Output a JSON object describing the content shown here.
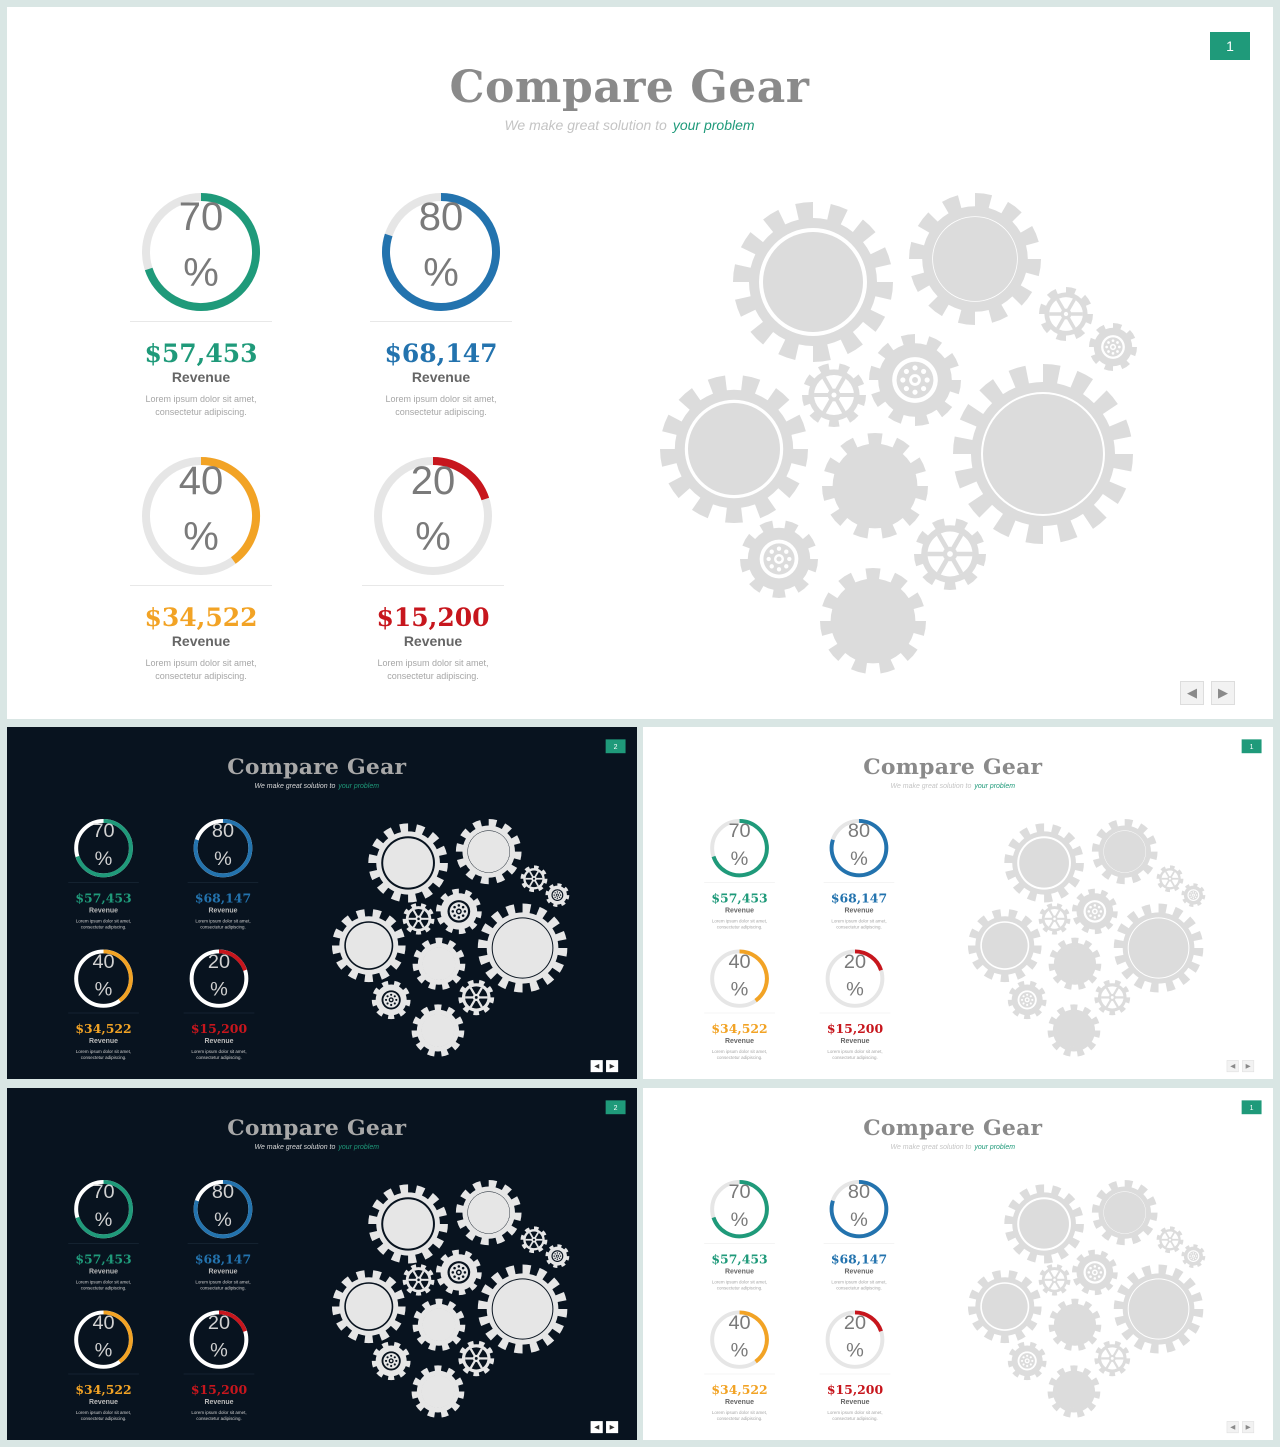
{
  "slides": [
    {
      "theme": "light",
      "page_number": "1"
    },
    {
      "theme": "dark",
      "page_number": "2"
    },
    {
      "theme": "light",
      "page_number": "1"
    },
    {
      "theme": "dark",
      "page_number": "2"
    },
    {
      "theme": "light",
      "page_number": "1"
    }
  ],
  "title": "Compare Gear",
  "subtitle": {
    "lead": "We make great solution to",
    "accent": "your problem"
  },
  "stats": [
    {
      "percent": "70",
      "unit": "%",
      "value": 0.7,
      "amount": "$57,453",
      "label": "Revenue",
      "desc_line1": "Lorem ipsum dolor sit amet,",
      "desc_line2": "consectetur adipiscing.",
      "color": "#1f9a7a"
    },
    {
      "percent": "80",
      "unit": "%",
      "value": 0.8,
      "amount": "$68,147",
      "label": "Revenue",
      "desc_line1": "Lorem ipsum dolor sit amet,",
      "desc_line2": "consectetur adipiscing.",
      "color": "#2373ae"
    },
    {
      "percent": "40",
      "unit": "%",
      "value": 0.4,
      "amount": "$34,522",
      "label": "Revenue",
      "desc_line1": "Lorem ipsum dolor sit amet,",
      "desc_line2": "consectetur adipiscing.",
      "color": "#f2a325"
    },
    {
      "percent": "20",
      "unit": "%",
      "value": 0.2,
      "amount": "$15,200",
      "label": "Revenue",
      "desc_line1": "Lorem ipsum dolor sit amet,",
      "desc_line2": "consectetur adipiscing.",
      "color": "#c7161d"
    }
  ],
  "nav": {
    "prev_icon": "triangle-left-icon",
    "next_icon": "triangle-right-icon",
    "prev_glyph": "◀",
    "next_glyph": "▶"
  },
  "colors": {
    "accent": "#1f9a7a",
    "gear_light": "#dcdcdc",
    "gear_dark": "#e6e6e6",
    "dark_bg": "#08131f"
  }
}
